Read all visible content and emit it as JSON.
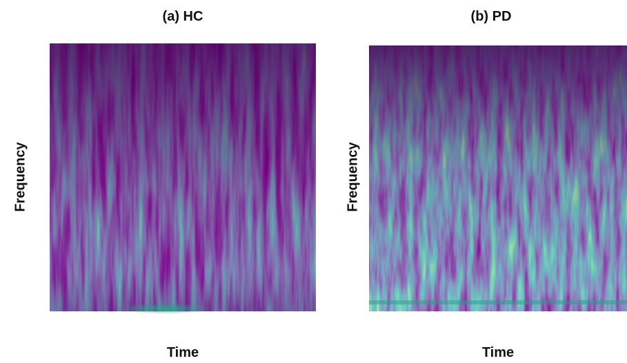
{
  "panels": [
    {
      "title": "(a) HC",
      "x_label": "Time",
      "y_label": "Frequency"
    },
    {
      "title": "(b) PD",
      "x_label": "Time",
      "y_label": "Frequency"
    }
  ]
}
